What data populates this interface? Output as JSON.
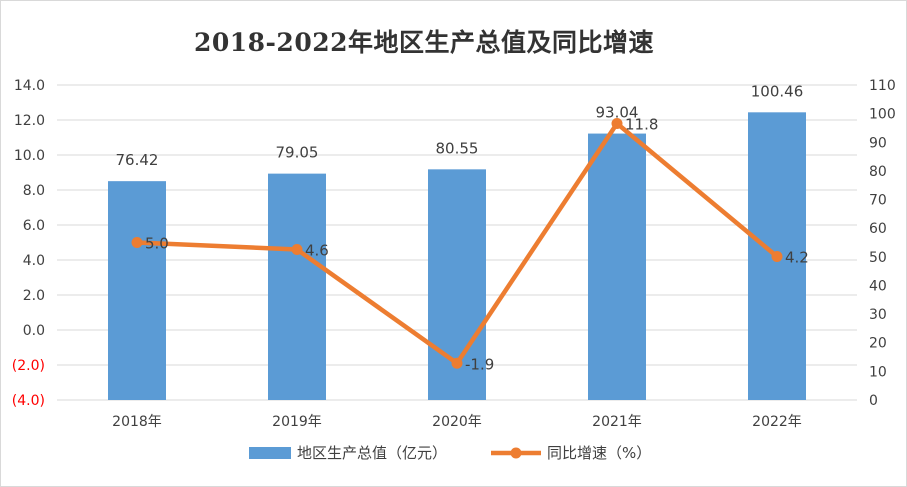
{
  "chart_data": {
    "type": "bar",
    "title": "2018-2022年地区生产总值及同比增速",
    "categories": [
      "2018年",
      "2019年",
      "2020年",
      "2021年",
      "2022年"
    ],
    "series": [
      {
        "name": "地区生产总值（亿元）",
        "type": "bar",
        "axis": "right",
        "values": [
          76.42,
          79.05,
          80.55,
          93.04,
          100.46
        ],
        "value_labels": [
          "76.42",
          "79.05",
          "80.55",
          "93.04",
          "100.46"
        ],
        "color": "#5b9bd5"
      },
      {
        "name": "同比增速（%）",
        "type": "line",
        "axis": "left",
        "values": [
          5.0,
          4.6,
          -1.9,
          11.8,
          4.2
        ],
        "value_labels": [
          "5.0",
          "4.6",
          "-1.9",
          "11.8",
          "4.2"
        ],
        "color": "#ed7d31"
      }
    ],
    "y_left": {
      "ylim": [
        -4,
        14
      ],
      "ticks": [
        14,
        12,
        10,
        8,
        6,
        4,
        2,
        0,
        -2,
        -4
      ],
      "tick_labels": [
        "14.0",
        "12.0",
        "10.0",
        "8.0",
        "6.0",
        "4.0",
        "2.0",
        "0.0",
        "(2.0)",
        "(4.0)"
      ],
      "negative_color": "#ff0000"
    },
    "y_right": {
      "ylim": [
        0,
        110
      ],
      "ticks": [
        110,
        100,
        90,
        80,
        70,
        60,
        50,
        40,
        30,
        20,
        10,
        0
      ],
      "tick_labels": [
        "110",
        "100",
        "90",
        "80",
        "70",
        "60",
        "50",
        "40",
        "30",
        "20",
        "10",
        "0"
      ]
    },
    "grid": true,
    "legend_position": "bottom"
  }
}
